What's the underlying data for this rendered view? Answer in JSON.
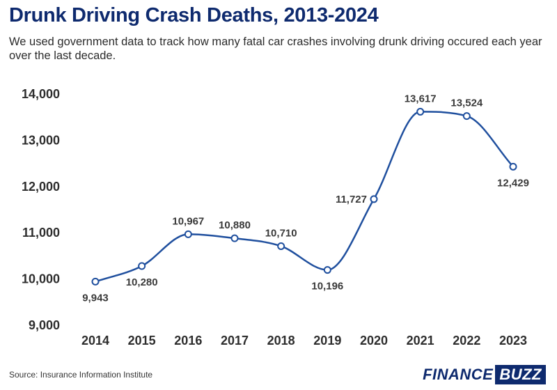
{
  "header": {
    "title": "Drunk Driving Crash Deaths, 2013-2024",
    "subtitle": "We used government data to track how many fatal car crashes involving drunk driving occured each year over the last decade."
  },
  "footer": {
    "source": "Source: Insurance Information Institute",
    "logo_part1": "FINANCE",
    "logo_part2": "BUZZ"
  },
  "colors": {
    "line": "#1f4f9e",
    "title": "#0e2a6e"
  },
  "chart_data": {
    "type": "line",
    "title": "Drunk Driving Crash Deaths, 2013-2024",
    "xlabel": "",
    "ylabel": "",
    "x": [
      "2014",
      "2015",
      "2016",
      "2017",
      "2018",
      "2019",
      "2020",
      "2021",
      "2022",
      "2023"
    ],
    "series": [
      {
        "values": [
          9943,
          10280,
          10967,
          10880,
          10710,
          10196,
          11727,
          13617,
          13524,
          12429
        ],
        "labels": [
          "9,943",
          "10,280",
          "10,967",
          "10,880",
          "10,710",
          "10,196",
          "11,727",
          "13,617",
          "13,524",
          "12,429"
        ],
        "label_position": [
          "below",
          "below",
          "above",
          "above",
          "above",
          "below",
          "left",
          "above",
          "above",
          "below"
        ]
      }
    ],
    "ylim": [
      9000,
      14000
    ],
    "yticks": [
      9000,
      10000,
      11000,
      12000,
      13000,
      14000
    ],
    "ytick_labels": [
      "9,000",
      "10,000",
      "11,000",
      "12,000",
      "13,000",
      "14,000"
    ],
    "grid": false,
    "legend": "none"
  }
}
